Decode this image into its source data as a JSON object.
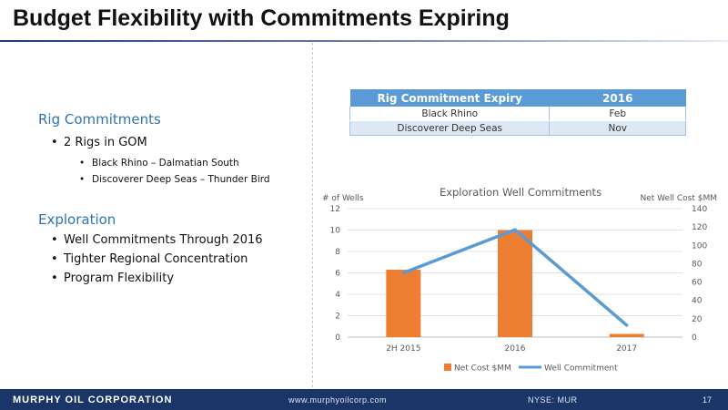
{
  "title": "Budget Flexibility with Commitments Expiring",
  "left": {
    "sections": [
      {
        "heading": "Rig Commitments",
        "bullets": [
          "2 Rigs in GOM"
        ],
        "sub_bullets": [
          "Black Rhino – Dalmatian South",
          "Discoverer Deep Seas – Thunder Bird"
        ]
      },
      {
        "heading": "Exploration",
        "bullets": [
          "Well Commitments Through 2016",
          "Tighter Regional Concentration",
          "Program Flexibility"
        ]
      }
    ]
  },
  "rig_table": {
    "headers": [
      "Rig Commitment Expiry",
      "2016"
    ],
    "rows": [
      [
        "Black Rhino",
        "Feb"
      ],
      [
        "Discoverer Deep Seas",
        "Nov"
      ]
    ]
  },
  "chart_data": {
    "type": "bar",
    "title": "Exploration Well Commitments",
    "categories": [
      "2H 2015",
      "2016",
      "2017"
    ],
    "series": [
      {
        "name": "Net Cost $MM",
        "type": "bar",
        "axis": "left",
        "color": "#ed7d31",
        "values": [
          6.3,
          10.0,
          0.3
        ]
      },
      {
        "name": "Well Commitment",
        "type": "line",
        "axis": "right",
        "color": "#5b9bd5",
        "values": [
          70,
          117,
          13
        ]
      }
    ],
    "ylabel": "# of Wells",
    "y2label": "Net Well Cost $MM",
    "ylim": [
      0,
      12
    ],
    "y2lim": [
      0,
      140
    ],
    "yticks": [
      0,
      2,
      4,
      6,
      8,
      10,
      12
    ],
    "y2ticks": [
      0,
      20,
      40,
      60,
      80,
      100,
      120,
      140
    ],
    "legend": "bottom",
    "grid": true
  },
  "footer": {
    "company": "MURPHY OIL CORPORATION",
    "website": "www.murphyoilcorp.com",
    "ticker": "NYSE: MUR",
    "page": "17"
  }
}
